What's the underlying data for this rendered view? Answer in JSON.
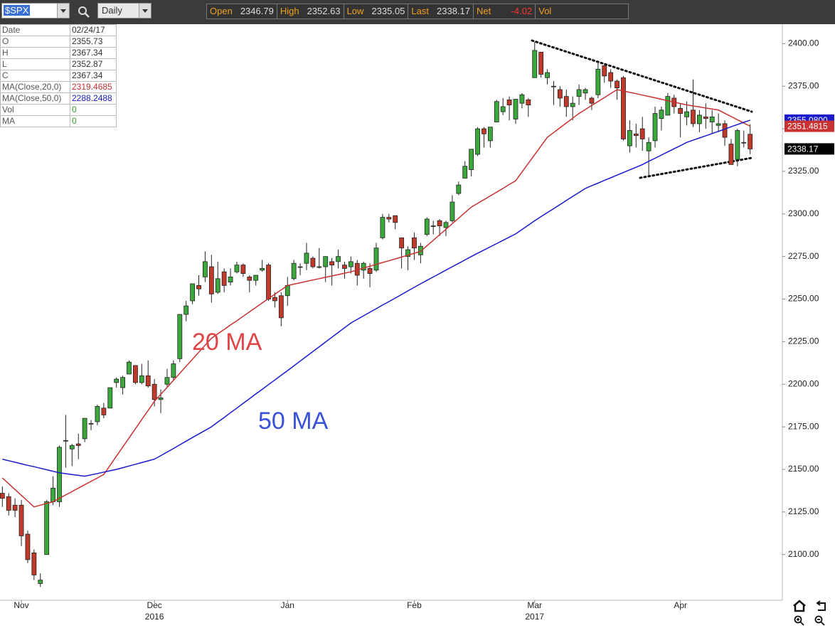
{
  "toolbar": {
    "symbol": "$SPX",
    "interval": "Daily",
    "quote": [
      {
        "label": "Open",
        "value": "2346.79"
      },
      {
        "label": "High",
        "value": "2352.63"
      },
      {
        "label": "Low",
        "value": "2335.05"
      },
      {
        "label": "Last",
        "value": "2338.17"
      },
      {
        "label": "Net",
        "value": "-4.02"
      },
      {
        "label": "Vol",
        "value": ""
      }
    ]
  },
  "info_panel": {
    "rows": [
      [
        "Date",
        "02/24/17"
      ],
      [
        "O",
        "2355.73"
      ],
      [
        "H",
        "2367.34"
      ],
      [
        "L",
        "2352.87"
      ],
      [
        "C",
        "2367.34"
      ],
      [
        "MA(Close,20,0)",
        "2319.4685"
      ],
      [
        "MA(Close,50,0)",
        "2288.2488"
      ],
      [
        "Vol",
        "0"
      ],
      [
        "MA",
        "0"
      ]
    ]
  },
  "chart_data": {
    "type": "candlestick",
    "categories": [
      null,
      null,
      null,
      "Nov",
      null,
      null,
      null,
      null,
      null,
      null,
      null,
      null,
      null,
      null,
      null,
      null,
      null,
      null,
      null,
      null,
      null,
      null,
      null,
      null,
      "Dec",
      null,
      null,
      null,
      null,
      null,
      null,
      null,
      null,
      null,
      null,
      null,
      null,
      null,
      null,
      null,
      null,
      null,
      null,
      null,
      null,
      "Jan",
      null,
      null,
      null,
      null,
      null,
      null,
      null,
      null,
      null,
      null,
      null,
      null,
      null,
      null,
      null,
      null,
      null,
      null,
      null,
      "Feb",
      null,
      null,
      null,
      null,
      null,
      null,
      null,
      null,
      null,
      null,
      null,
      null,
      null,
      null,
      null,
      null,
      null,
      null,
      "Mar",
      null,
      null,
      null,
      null,
      null,
      null,
      null,
      null,
      null,
      null,
      null,
      null,
      null,
      null,
      null,
      null,
      null,
      null,
      null,
      null,
      null,
      null,
      "Apr",
      null,
      null,
      null,
      null,
      null,
      null,
      null,
      null,
      null,
      null,
      null
    ],
    "years": [
      null,
      null,
      null,
      null,
      null,
      null,
      null,
      null,
      null,
      null,
      null,
      null,
      null,
      null,
      null,
      null,
      null,
      null,
      null,
      null,
      null,
      null,
      null,
      null,
      "2016",
      null,
      null,
      null,
      null,
      null,
      null,
      null,
      null,
      null,
      null,
      null,
      null,
      null,
      null,
      null,
      null,
      null,
      null,
      null,
      null,
      null,
      null,
      null,
      null,
      null,
      null,
      null,
      null,
      null,
      null,
      null,
      null,
      null,
      null,
      null,
      null,
      null,
      null,
      null,
      null,
      null,
      null,
      null,
      null,
      null,
      null,
      null,
      null,
      null,
      null,
      null,
      null,
      null,
      null,
      null,
      null,
      null,
      null,
      null,
      "2017",
      null,
      null,
      null,
      null,
      null,
      null,
      null,
      null,
      null,
      null,
      null,
      null,
      null,
      null,
      null,
      null,
      null,
      null,
      null,
      null,
      null,
      null,
      null,
      null,
      null,
      null,
      null,
      null,
      null,
      null,
      null,
      null,
      null
    ],
    "open": [
      2136,
      2134,
      2129,
      2129,
      2112,
      2101,
      2083,
      2100,
      2131,
      2131,
      2167,
      2162,
      2165,
      2168,
      2177,
      2178,
      2186,
      2186,
      2201,
      2198,
      2206,
      2211,
      2201,
      2205,
      2200,
      2191,
      2200,
      2204,
      2215,
      2241,
      2249,
      2258,
      2263,
      2269,
      2254,
      2266,
      2260,
      2266,
      2270,
      2263,
      2261,
      2267,
      2270,
      2251,
      2252,
      2252,
      2262,
      2269,
      2271,
      2274,
      2269,
      2269,
      2272,
      2272,
      2270,
      2269,
      2271,
      2267,
      2268,
      2267,
      2286,
      2298,
      2299,
      2286,
      2275,
      2286,
      2276,
      2288,
      2293,
      2296,
      2292,
      2296,
      2312,
      2321,
      2326,
      2335,
      2350,
      2343,
      2354,
      2360,
      2367,
      2355.73,
      2365,
      2367,
      2380,
      2395,
      2380,
      2375,
      2373,
      2369,
      2363,
      2369,
      2371,
      2368,
      2370,
      2387,
      2383,
      2378,
      2380,
      2340,
      2347,
      2350,
      2337,
      2343,
      2356,
      2358,
      2368,
      2362,
      2357,
      2361,
      2353,
      2357,
      2354,
      2352,
      2353,
      2341,
      2332,
      2342,
      2346.79
    ],
    "high": [
      2140,
      2136,
      2133,
      2132,
      2114,
      2103,
      2089,
      2132,
      2146,
      2164,
      2182,
      2165,
      2171,
      2180,
      2179,
      2188,
      2189,
      2198,
      2204,
      2205,
      2214,
      2211,
      2212,
      2214,
      2203,
      2197,
      2209,
      2214,
      2241,
      2249,
      2259,
      2264,
      2278,
      2276,
      2272,
      2268,
      2268,
      2272,
      2271,
      2264,
      2264,
      2273,
      2271,
      2254,
      2254,
      2263,
      2273,
      2271,
      2283,
      2275,
      2280,
      2275,
      2274,
      2279,
      2272,
      2275,
      2273,
      2272,
      2271,
      2283,
      2300,
      2300,
      2299,
      2286,
      2281,
      2289,
      2283,
      2298,
      2296,
      2297,
      2296,
      2311,
      2319,
      2331,
      2338,
      2351,
      2351,
      2351,
      2367,
      2368,
      2369,
      2367.34,
      2371,
      2368,
      2401,
      2395,
      2385,
      2378,
      2375,
      2373,
      2369,
      2376,
      2374,
      2369,
      2390,
      2388,
      2385,
      2379,
      2381,
      2355,
      2353,
      2357,
      2345,
      2363,
      2363,
      2371,
      2370,
      2365,
      2366,
      2379,
      2361,
      2365,
      2361,
      2359,
      2355,
      2344,
      2350,
      2349,
      2352.63
    ],
    "low": [
      2128,
      2123,
      2122,
      2105,
      2095,
      2085,
      2081,
      2100,
      2129,
      2128,
      2151,
      2152,
      2156,
      2166,
      2173,
      2176,
      2180,
      2186,
      2198,
      2194,
      2206,
      2200,
      2200,
      2198,
      2187,
      2183,
      2198,
      2202,
      2213,
      2237,
      2247,
      2252,
      2260,
      2248,
      2253,
      2254,
      2258,
      2265,
      2263,
      2254,
      2258,
      2266,
      2249,
      2245,
      2234,
      2246,
      2261,
      2264,
      2267,
      2268,
      2268,
      2260,
      2258,
      2268,
      2262,
      2265,
      2258,
      2262,
      2257,
      2266,
      2285,
      2295,
      2291,
      2268,
      2267,
      2273,
      2271,
      2287,
      2288,
      2287,
      2287,
      2295,
      2311,
      2321,
      2322,
      2334,
      2339,
      2339,
      2354,
      2358,
      2355,
      2352.87,
      2362,
      2357,
      2380,
      2380,
      2376,
      2364,
      2363,
      2357,
      2355,
      2364,
      2367,
      2361,
      2368,
      2377,
      2374,
      2367,
      2343,
      2336,
      2339,
      2337,
      2322,
      2339,
      2349,
      2358,
      2359,
      2345,
      2352,
      2351,
      2348,
      2350,
      2347,
      2348,
      2340,
      2329,
      2328,
      2339,
      2335.05
    ],
    "close": [
      2133,
      2126,
      2126,
      2111,
      2097,
      2088,
      2085,
      2131,
      2139,
      2163,
      2167,
      2164,
      2164,
      2180,
      2177,
      2187,
      2182,
      2198,
      2203,
      2204,
      2213,
      2201,
      2205,
      2199,
      2191,
      2192,
      2204,
      2212,
      2241,
      2246,
      2259,
      2256,
      2272,
      2253,
      2262,
      2258,
      2263,
      2270,
      2265,
      2261,
      2264,
      2268,
      2250,
      2249,
      2239,
      2258,
      2271,
      2269,
      2277,
      2269,
      2269,
      2275,
      2270,
      2275,
      2268,
      2272,
      2264,
      2271,
      2265,
      2280,
      2298,
      2297,
      2295,
      2280,
      2279,
      2280,
      2281,
      2297,
      2293,
      2293,
      2295,
      2307,
      2317,
      2328,
      2338,
      2350,
      2347,
      2351,
      2366,
      2363,
      2364,
      2367.34,
      2370,
      2364,
      2396,
      2382,
      2383,
      2375,
      2368,
      2363,
      2365,
      2373,
      2373,
      2365,
      2385,
      2381,
      2378,
      2374,
      2344,
      2349,
      2346,
      2344,
      2342,
      2359,
      2361,
      2369,
      2363,
      2359,
      2360,
      2353,
      2358,
      2356,
      2357,
      2353,
      2345,
      2329,
      2349,
      2342,
      2338.17
    ],
    "up_color": "#3aa83a",
    "down_color": "#c0392b",
    "last_close_label": "2338.17",
    "series": [
      {
        "name": "20 MA",
        "color": "#c83232",
        "last_value_label": "2351.4815",
        "values": [
          2145,
          2141.6,
          2138.2,
          2134.8,
          2131.4,
          2128,
          2129,
          2130,
          2131,
          2133,
          2135,
          2137,
          2139,
          2141,
          2143,
          2145,
          2147,
          2152.4,
          2157.8,
          2163.1,
          2168.5,
          2173.9,
          2179.3,
          2184.6,
          2190,
          2194.1,
          2198.2,
          2202.3,
          2206.4,
          2210.6,
          2214.7,
          2218.8,
          2222.9,
          2227,
          2229.6,
          2232.2,
          2234.8,
          2237.3,
          2239.9,
          2242.5,
          2245.1,
          2247.7,
          2250.3,
          2252.8,
          2255.4,
          2258,
          2258.8,
          2259.6,
          2260.4,
          2261.2,
          2262,
          2262.8,
          2263.6,
          2264.4,
          2265.2,
          2266,
          2267.1,
          2268.2,
          2269.3,
          2270.4,
          2271.5,
          2272.5,
          2273.6,
          2274.7,
          2275.8,
          2276.9,
          2278,
          2281.3,
          2284.5,
          2287.8,
          2291,
          2294.3,
          2297.5,
          2300.8,
          2304,
          2306.2,
          2308.4,
          2310.6,
          2312.8,
          2315,
          2317.3,
          2319.4685,
          2324.6,
          2329.7,
          2334.8,
          2339.9,
          2345,
          2347.8,
          2350.6,
          2353.4,
          2356.2,
          2359,
          2361.3,
          2363.7,
          2366,
          2368.3,
          2370.7,
          2373,
          2372.2,
          2371.4,
          2370.6,
          2369.8,
          2369,
          2368.2,
          2367.3,
          2366.5,
          2365.7,
          2364.8,
          2364,
          2363.4,
          2362.8,
          2362.2,
          2361.6,
          2361,
          2359.1,
          2357.2,
          2355.3,
          2353.4,
          2351.4815
        ]
      },
      {
        "name": "50 MA",
        "color": "#1a1acc",
        "last_value_label": "2355.0800",
        "values": [
          2156,
          2155.1,
          2154.2,
          2153.3,
          2152.4,
          2151.6,
          2150.7,
          2149.8,
          2148.9,
          2148,
          2147.5,
          2147,
          2146.5,
          2146,
          2146.8,
          2147.6,
          2148.4,
          2149.2,
          2150,
          2151,
          2152,
          2153,
          2154,
          2155,
          2156,
          2158.1,
          2160.2,
          2162.3,
          2164.4,
          2166.6,
          2168.7,
          2170.8,
          2172.9,
          2175,
          2177.8,
          2180.5,
          2183.3,
          2186,
          2188.8,
          2191.5,
          2194.3,
          2197,
          2199.8,
          2202.5,
          2205.3,
          2208,
          2210.8,
          2213.6,
          2216.4,
          2219.2,
          2222,
          2224.8,
          2227.6,
          2230.4,
          2233.2,
          2236,
          2238.1,
          2240.2,
          2242.3,
          2244.4,
          2246.5,
          2248.5,
          2250.6,
          2252.7,
          2254.8,
          2256.9,
          2259,
          2261,
          2263,
          2265,
          2267,
          2269,
          2271,
          2273,
          2275,
          2276.9,
          2278.8,
          2280.7,
          2282.6,
          2284.5,
          2286.4,
          2288.2488,
          2290.8,
          2293.4,
          2296,
          2298.4,
          2300.8,
          2303.1,
          2305.5,
          2307.9,
          2310.3,
          2312.6,
          2315,
          2316.6,
          2318.1,
          2319.7,
          2321.2,
          2322.8,
          2324.3,
          2325.9,
          2327.4,
          2329,
          2330.9,
          2332.7,
          2334.6,
          2336.4,
          2338.3,
          2340.1,
          2342,
          2343.3,
          2344.6,
          2345.9,
          2347.2,
          2348.5,
          2349.8,
          2351.2,
          2352.5,
          2353.8,
          2355.08
        ]
      }
    ],
    "ylim": [
      2074,
      2411
    ],
    "yticks": [
      {
        "value": 2100,
        "label": "2100.00"
      },
      {
        "value": 2125,
        "label": "2125.00"
      },
      {
        "value": 2150,
        "label": "2150.00"
      },
      {
        "value": 2175,
        "label": "2175.00"
      },
      {
        "value": 2200,
        "label": "2200.00"
      },
      {
        "value": 2225,
        "label": "2225.00"
      },
      {
        "value": 2250,
        "label": "2250.00"
      },
      {
        "value": 2275,
        "label": "2275.00"
      },
      {
        "value": 2300,
        "label": "2300.00"
      },
      {
        "value": 2325,
        "label": "2325.00"
      },
      {
        "value": 2350,
        "label": "2350.00"
      },
      {
        "value": 2375,
        "label": "2375.00"
      },
      {
        "value": 2400,
        "label": "2400.00"
      }
    ]
  }
}
